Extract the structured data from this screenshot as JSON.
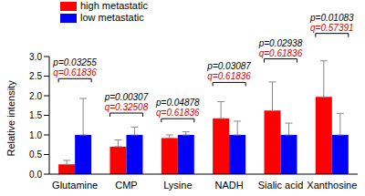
{
  "chart_data": {
    "type": "bar",
    "ylabel": "Relative intensity",
    "categories": [
      "Glutamine",
      "CMP",
      "Lysine",
      "NADH",
      "Sialic acid",
      "Xanthosine"
    ],
    "series": [
      {
        "name": "high metastatic",
        "color": "#ff0000",
        "values": [
          0.25,
          0.7,
          0.92,
          1.42,
          1.62,
          1.97
        ],
        "errors": [
          0.1,
          0.17,
          0.08,
          0.43,
          0.73,
          0.92
        ]
      },
      {
        "name": "low metastatic",
        "color": "#0000ff",
        "values": [
          1,
          1,
          1,
          1,
          1,
          1
        ],
        "errors": [
          0.93,
          0.2,
          0.08,
          0.35,
          0.3,
          0.55
        ]
      }
    ],
    "ylim": [
      0,
      3
    ],
    "yticks": [
      {
        "value": 0,
        "label": "0.0"
      },
      {
        "value": 0.5,
        "label": "0.5"
      },
      {
        "value": 1,
        "label": "1.0"
      },
      {
        "value": 1.5,
        "label": "1.5"
      },
      {
        "value": 2,
        "label": "2.0"
      },
      {
        "value": 2.5,
        "label": "2.5"
      },
      {
        "value": 3,
        "label": "3.0"
      }
    ],
    "annotations": [
      {
        "p": "p=0.03255",
        "q": "q=0.61836"
      },
      {
        "p": "p=0.00307",
        "q": "q=0.32508"
      },
      {
        "p": "p=0.04878",
        "q": "q=0.61836"
      },
      {
        "p": "p=0.03087",
        "q": "q=0.61836"
      },
      {
        "p": "p=0.02938",
        "q": "q=0.61836"
      },
      {
        "p": "p=0.01083",
        "q": "q=0.57391"
      }
    ],
    "legend": "top-left",
    "grid": false
  }
}
